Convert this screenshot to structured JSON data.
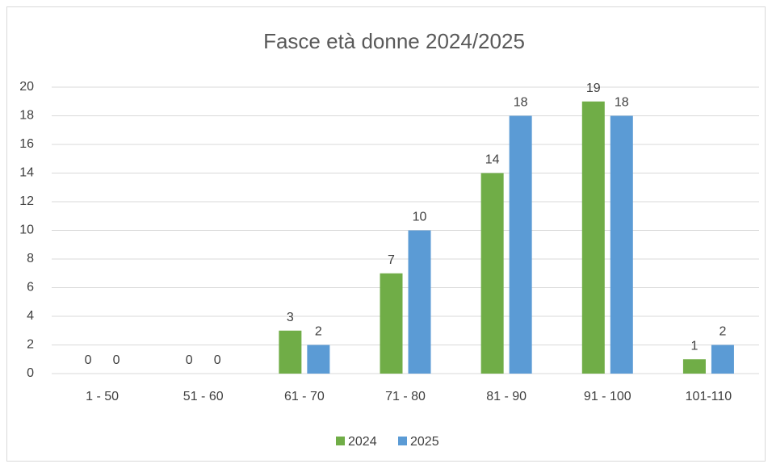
{
  "chart_data": {
    "type": "bar",
    "title": "Fasce età donne 2024/2025",
    "categories": [
      "1 - 50",
      "51 - 60",
      "61 - 70",
      "71 - 80",
      "81 - 90",
      "91 - 100",
      "101-110"
    ],
    "series": [
      {
        "name": "2024",
        "color": "#70ad47",
        "values": [
          0,
          0,
          3,
          7,
          14,
          19,
          1
        ]
      },
      {
        "name": "2025",
        "color": "#5b9bd5",
        "values": [
          0,
          0,
          2,
          10,
          18,
          18,
          2
        ]
      }
    ],
    "ylim": [
      0,
      20
    ],
    "yticks": [
      0,
      2,
      4,
      6,
      8,
      10,
      12,
      14,
      16,
      18,
      20
    ],
    "grid": true,
    "legend": "bottom"
  }
}
